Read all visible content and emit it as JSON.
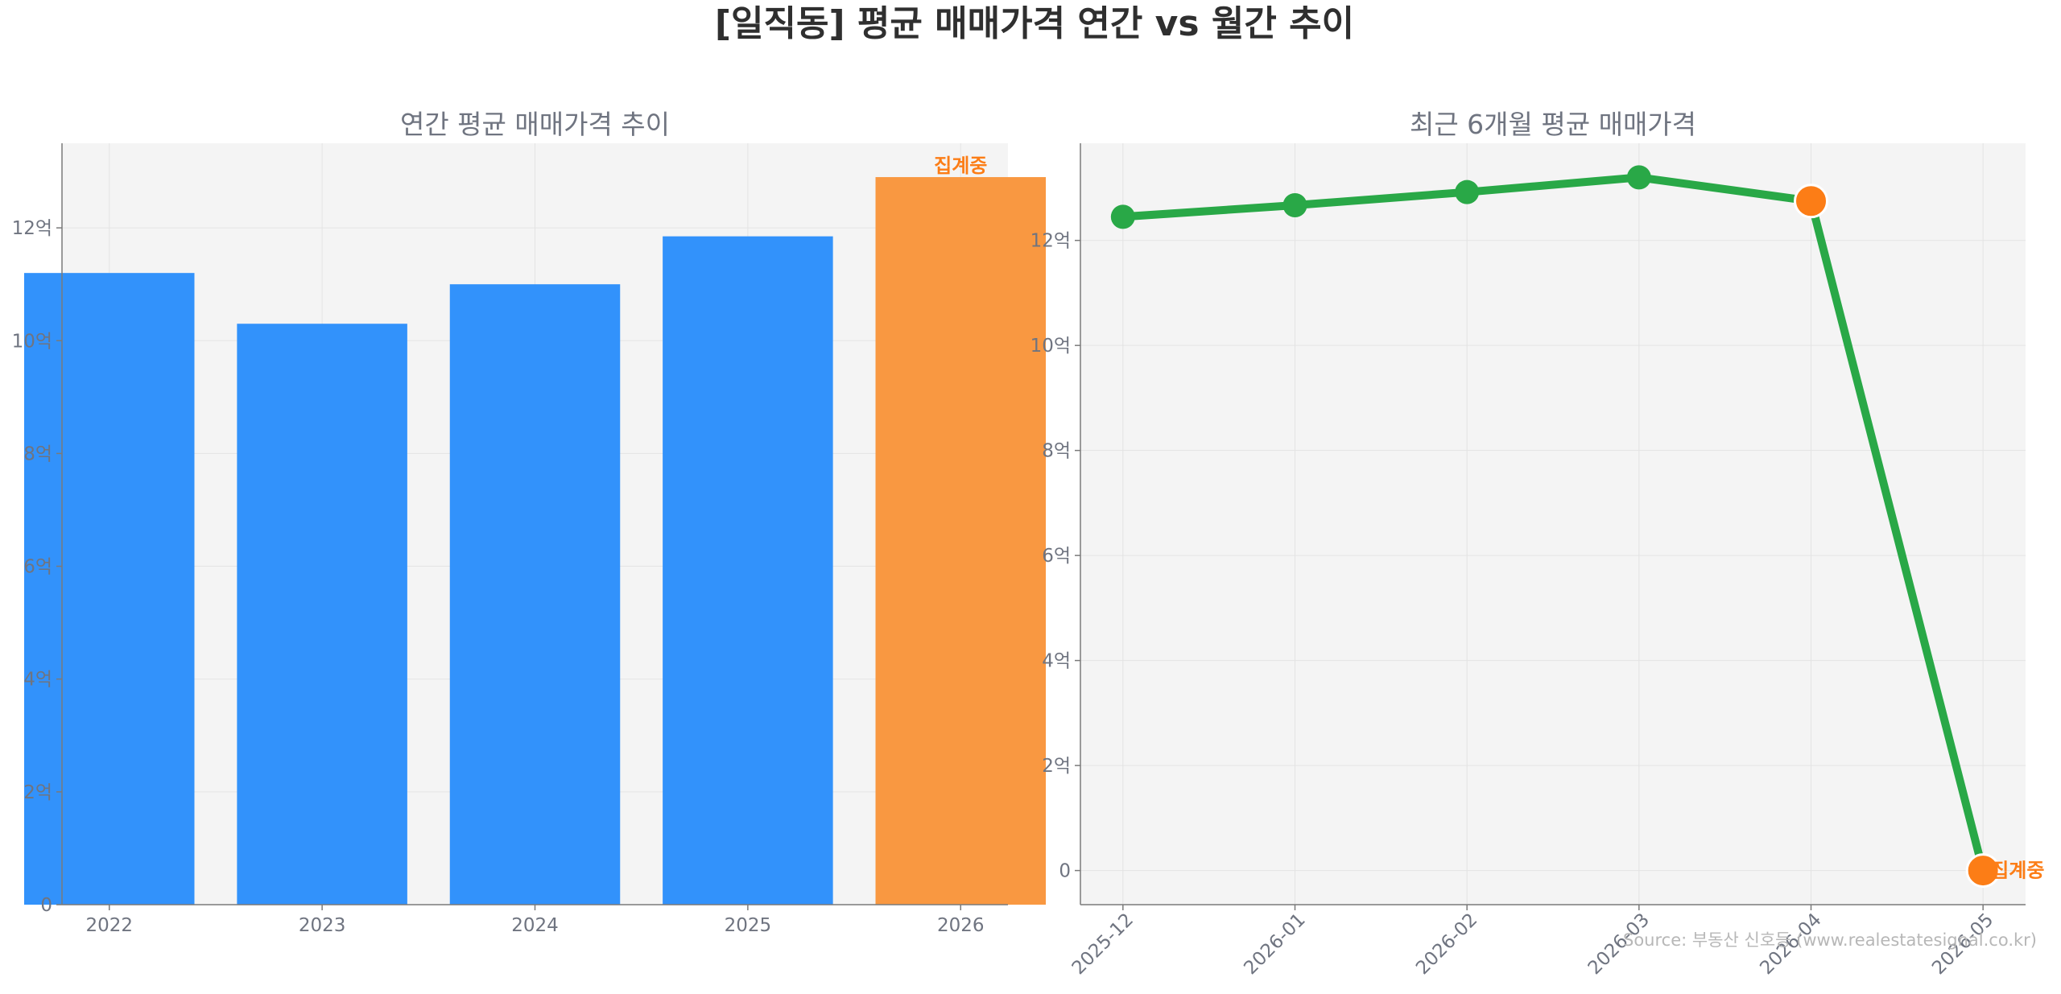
{
  "page": {
    "title": "[일직동] 평균 매매가격 연간 vs 월간 추이",
    "source": "Source: 부동산 신호등 (www.realestatesignal.co.kr)"
  },
  "colors": {
    "bar": "#3292fb",
    "bar_highlight": "#f99841",
    "line": "#29a847",
    "marker_highlight": "#fc7d16",
    "annotation": "#fc7d16",
    "axes_bg": "#f4f4f4"
  },
  "chart_data": [
    {
      "type": "bar",
      "title": "연간 평균 매매가격 추이",
      "categories": [
        "2022",
        "2023",
        "2024",
        "2025",
        "2026"
      ],
      "values": [
        11.2,
        10.3,
        11.0,
        11.85,
        12.9
      ],
      "highlight_index": 4,
      "annotation": "집계중",
      "ylim": [
        0,
        13.5
      ],
      "yticks": [
        0,
        2,
        4,
        6,
        8,
        10,
        12
      ],
      "ytick_labels": [
        "0",
        "2억",
        "4억",
        "6억",
        "8억",
        "10억",
        "12억"
      ],
      "grid": true
    },
    {
      "type": "line",
      "title": "최근 6개월 평균 매매가격",
      "x": [
        "2025-12",
        "2026-01",
        "2026-02",
        "2026-03",
        "2026-04",
        "2026-05"
      ],
      "values": [
        12.45,
        12.67,
        12.92,
        13.2,
        12.75,
        0
      ],
      "highlight_indices": [
        4,
        5
      ],
      "annotation": "집계중",
      "annotation_index": 5,
      "ylim": [
        -0.65,
        13.85
      ],
      "yticks": [
        0,
        2,
        4,
        6,
        8,
        10,
        12
      ],
      "ytick_labels": [
        "0",
        "2억",
        "4억",
        "6억",
        "8억",
        "10억",
        "12억"
      ],
      "grid": true
    }
  ]
}
